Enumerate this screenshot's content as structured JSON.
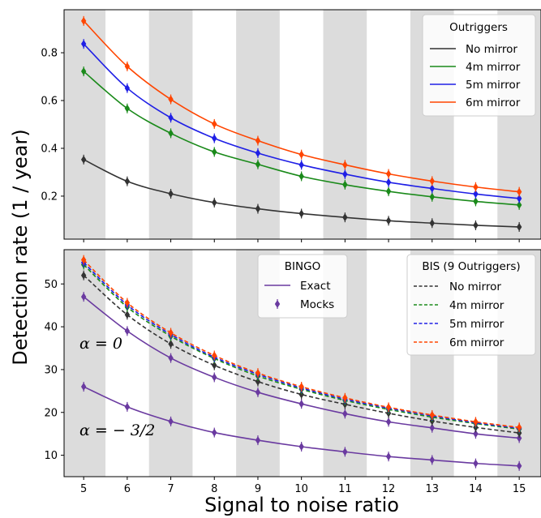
{
  "colors": {
    "no_mirror": "#333333",
    "m4": "#1a8a1a",
    "m5": "#1f1fe6",
    "m6": "#ff4500",
    "bingo": "#6a3aa0",
    "band": "#dcdcdc"
  },
  "chart_data": [
    {
      "type": "scatter",
      "panel": "top",
      "ylabel": "Detection rate (1 / year)",
      "xlim": [
        4.55,
        15.5
      ],
      "ylim": [
        0.02,
        0.98
      ],
      "yticks": [
        0.2,
        0.4,
        0.6,
        0.8
      ],
      "ytick_labels": [
        "0.2",
        "0.4",
        "0.6",
        "0.8"
      ],
      "legend_placement": "top-right",
      "legend": {
        "title": "Outriggers",
        "entries": [
          "No mirror",
          "4m mirror",
          "5m mirror",
          "6m mirror"
        ]
      },
      "x": [
        5,
        6,
        7,
        8,
        9,
        10,
        11,
        12,
        13,
        14,
        15
      ],
      "series": [
        {
          "name": "No mirror",
          "color_key": "no_mirror",
          "fit": true,
          "points": true,
          "dashed": false,
          "values": [
            0.353,
            0.262,
            0.21,
            0.173,
            0.147,
            0.127,
            0.111,
            0.097,
            0.087,
            0.078,
            0.071
          ]
        },
        {
          "name": "4m mirror",
          "color_key": "m4",
          "fit": true,
          "points": true,
          "dashed": false,
          "values": [
            0.722,
            0.567,
            0.463,
            0.385,
            0.333,
            0.283,
            0.248,
            0.22,
            0.197,
            0.178,
            0.163
          ]
        },
        {
          "name": "5m mirror",
          "color_key": "m5",
          "fit": true,
          "points": true,
          "dashed": false,
          "values": [
            0.837,
            0.652,
            0.528,
            0.442,
            0.38,
            0.331,
            0.292,
            0.258,
            0.232,
            0.209,
            0.19
          ]
        },
        {
          "name": "6m mirror",
          "color_key": "m6",
          "fit": true,
          "points": true,
          "dashed": false,
          "values": [
            0.933,
            0.743,
            0.605,
            0.502,
            0.432,
            0.374,
            0.331,
            0.293,
            0.263,
            0.238,
            0.218
          ]
        }
      ]
    },
    {
      "type": "line",
      "panel": "bottom",
      "xlabel": "Signal to noise ratio",
      "xlim": [
        4.55,
        15.5
      ],
      "ylim": [
        5,
        58
      ],
      "xticks": [
        5,
        6,
        7,
        8,
        9,
        10,
        11,
        12,
        13,
        14,
        15
      ],
      "xtick_labels": [
        "5",
        "6",
        "7",
        "8",
        "9",
        "10",
        "11",
        "12",
        "13",
        "14",
        "15"
      ],
      "yticks": [
        10,
        20,
        30,
        40,
        50
      ],
      "ytick_labels": [
        "10",
        "20",
        "30",
        "40",
        "50"
      ],
      "legend_bingo": {
        "title": "BINGO",
        "entries": [
          "Exact",
          "Mocks"
        ]
      },
      "legend_bis": {
        "title": "BIS (9 Outriggers)",
        "entries": [
          "No mirror",
          "4m mirror",
          "5m mirror",
          "6m mirror"
        ]
      },
      "annotations": [
        "α = 0",
        "α = − 3/2"
      ],
      "x": [
        5,
        6,
        7,
        8,
        9,
        10,
        11,
        12,
        13,
        14,
        15
      ],
      "series": [
        {
          "name": "Exact",
          "color_key": "bingo",
          "fit": true,
          "points": true,
          "dashed": false,
          "values": [
            47.0,
            39.0,
            32.7,
            28.2,
            24.7,
            22.0,
            19.7,
            17.8,
            16.4,
            15.0,
            14.0
          ]
        },
        {
          "name": "Exact",
          "color_key": "bingo",
          "fit": true,
          "points": true,
          "dashed": false,
          "values": [
            26.0,
            21.3,
            17.9,
            15.3,
            13.5,
            12.0,
            10.8,
            9.7,
            8.9,
            8.1,
            7.5
          ]
        },
        {
          "name": "No mirror",
          "color_key": "no_mirror",
          "fit": true,
          "points": true,
          "dashed": true,
          "values": [
            52.0,
            42.8,
            36.0,
            31.0,
            27.2,
            24.2,
            21.9,
            19.8,
            18.0,
            16.5,
            15.2
          ]
        },
        {
          "name": "4m mirror",
          "color_key": "m4",
          "fit": true,
          "points": true,
          "dashed": true,
          "values": [
            54.5,
            44.6,
            37.8,
            32.6,
            28.5,
            25.4,
            22.8,
            20.7,
            18.9,
            17.4,
            16.1
          ]
        },
        {
          "name": "5m mirror",
          "color_key": "m5",
          "fit": true,
          "points": true,
          "dashed": true,
          "values": [
            55.0,
            45.1,
            38.2,
            32.9,
            28.9,
            25.7,
            23.1,
            21.0,
            19.2,
            17.6,
            16.3
          ]
        },
        {
          "name": "6m mirror",
          "color_key": "m6",
          "fit": true,
          "points": true,
          "dashed": true,
          "values": [
            55.6,
            45.6,
            38.6,
            33.3,
            29.2,
            26.0,
            23.4,
            21.2,
            19.4,
            17.8,
            16.5
          ]
        }
      ]
    }
  ]
}
